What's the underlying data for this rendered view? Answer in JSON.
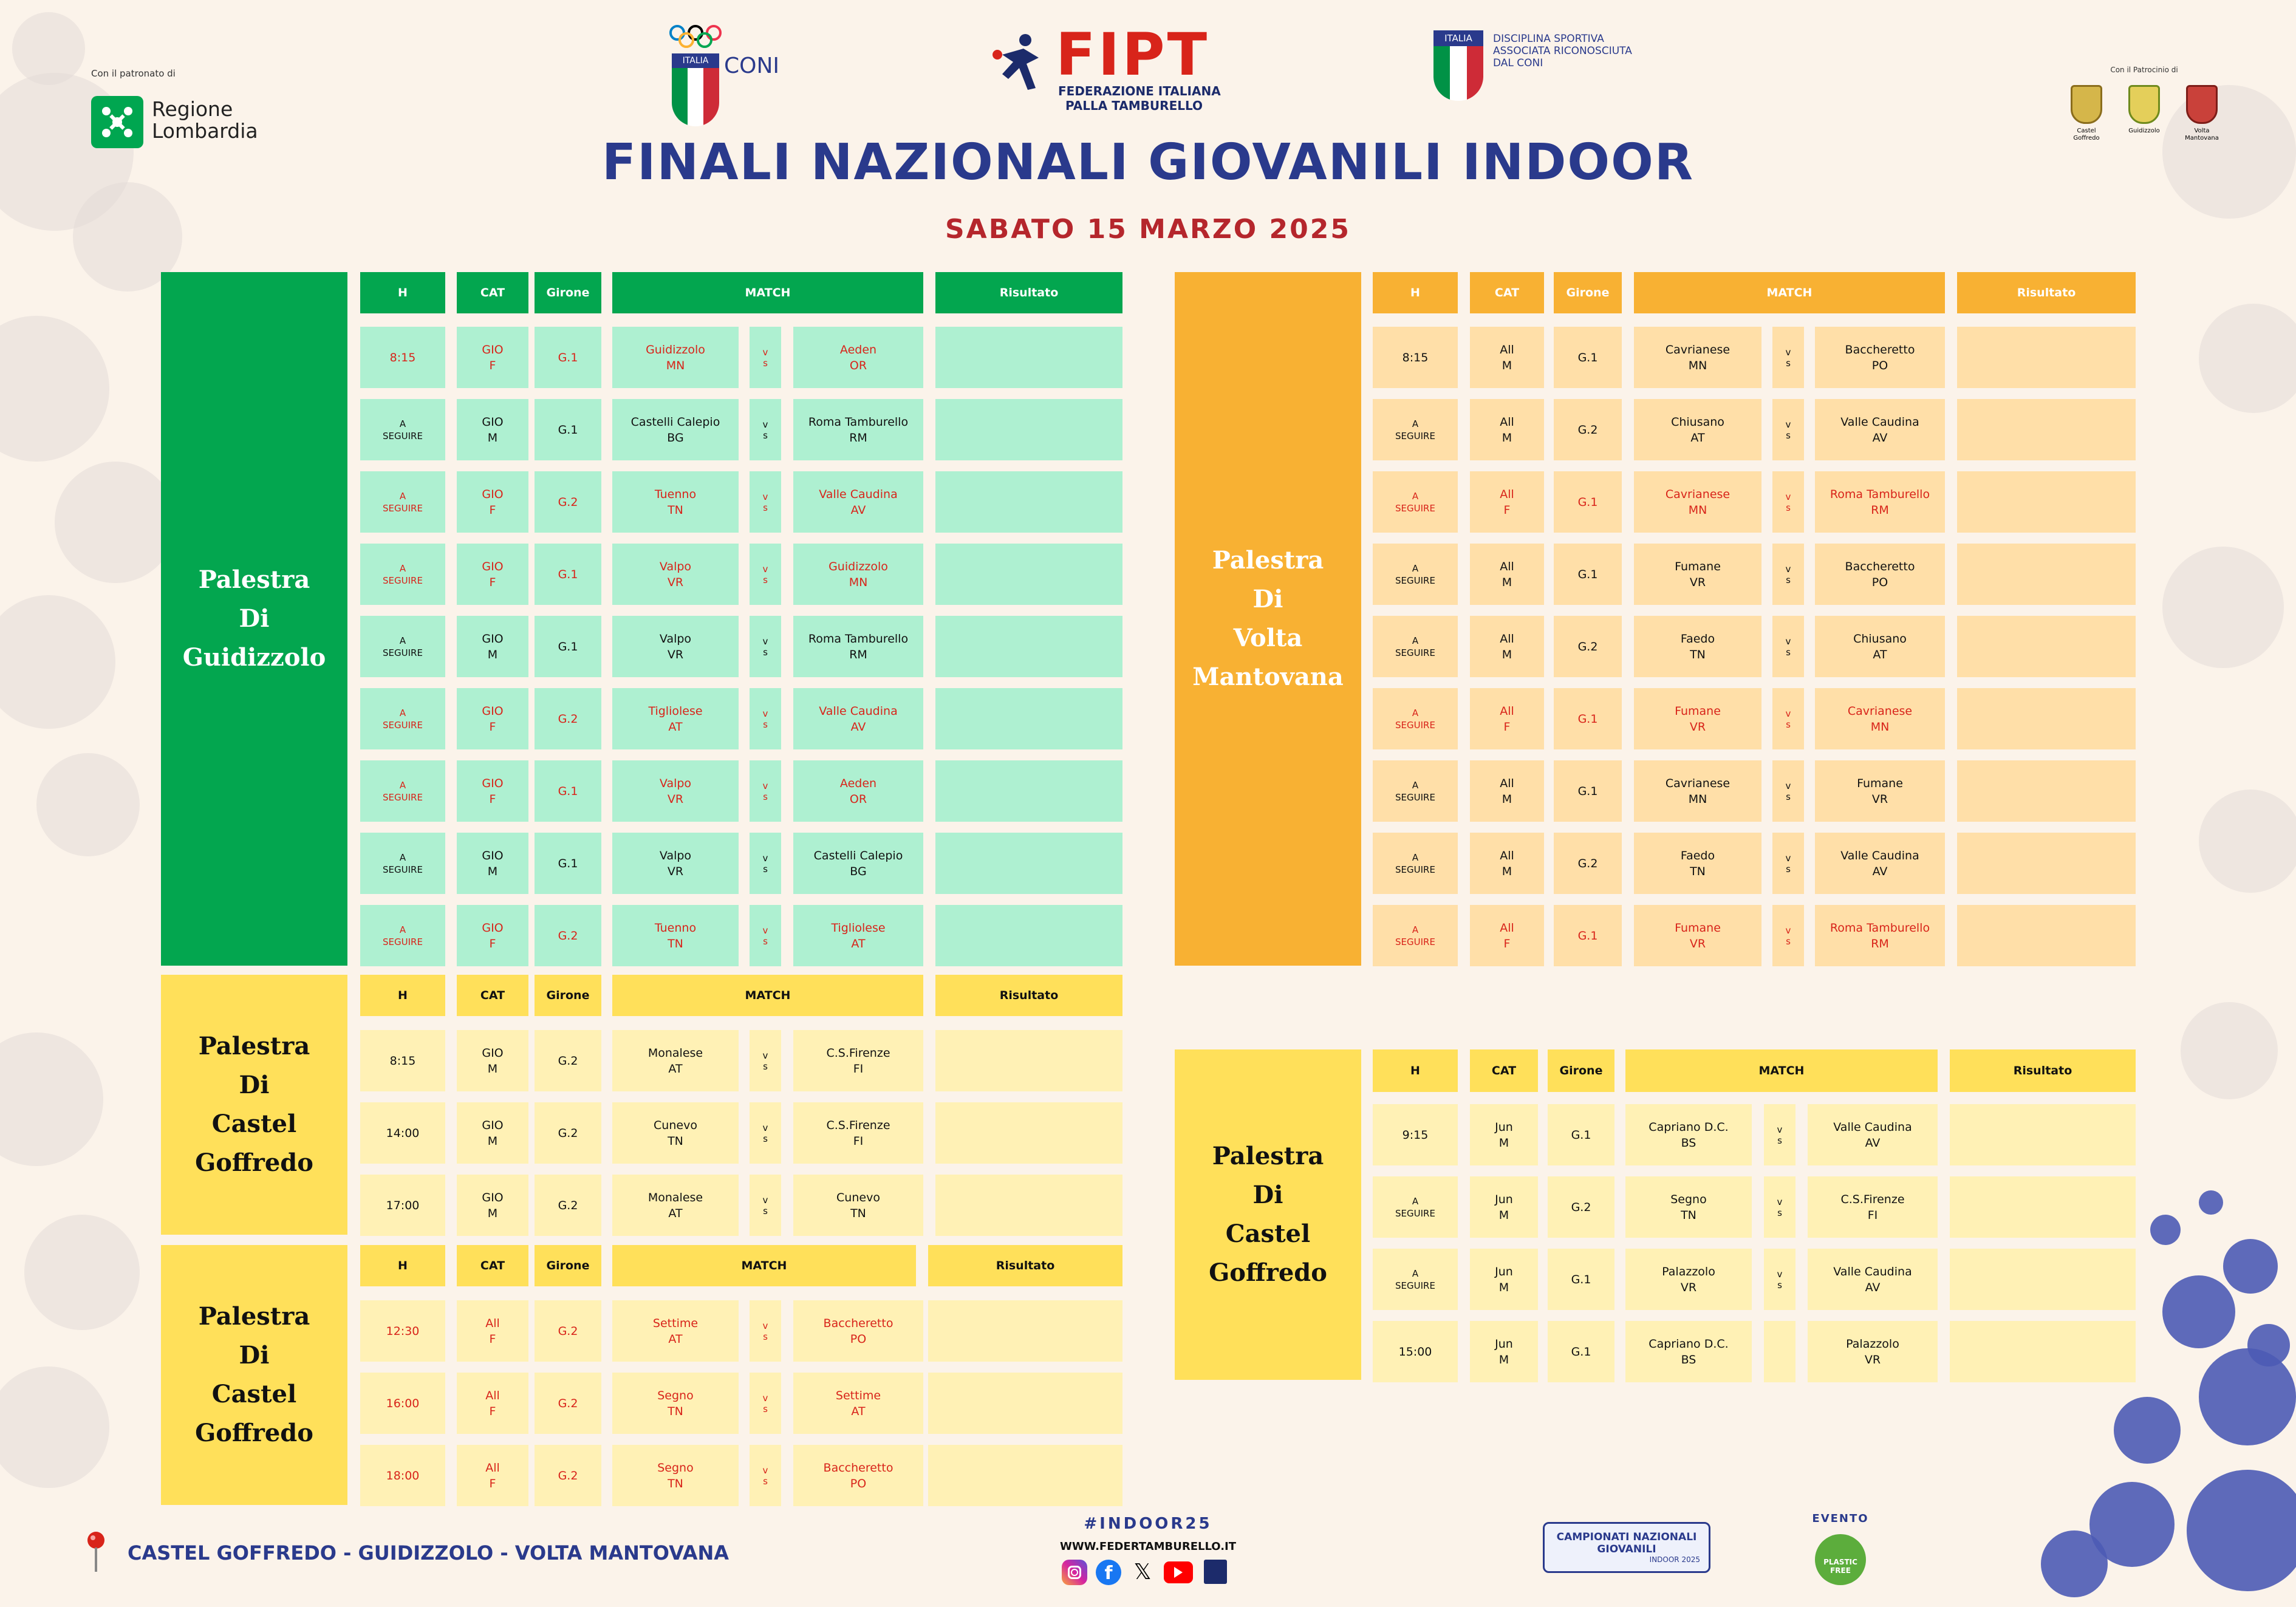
{
  "header": {
    "patronato_label": "Con il patronato di",
    "regione": "Regione\nLombardia",
    "coni": "CONI",
    "coni_italia": "ITALIA",
    "fipt_logo": "FIPT",
    "fipt_name": "FEDERAZIONE ITALIANA\nPALLA TAMBURELLO",
    "disciplina_italia": "ITALIA",
    "disciplina": "DISCIPLINA SPORTIVA\nASSOCIATA RICONOSCIUTA\nDAL CONI",
    "patrocinio_label": "Con il Patrocinio di",
    "comuni": [
      "Castel\nGoffredo",
      "Guidizzolo",
      "Volta\nMantovana"
    ],
    "title": "FINALI NAZIONALI GIOVANILI INDOOR",
    "subtitle": "SABATO 15 MARZO 2025"
  },
  "headers": {
    "h": "H",
    "cat": "CAT",
    "girone": "Girone",
    "match": "MATCH",
    "risultato": "Risultato"
  },
  "tables": [
    {
      "id": "guidizzolo",
      "venue": "Palestra\nDi\nGuidizzolo",
      "theme": "green",
      "colors": {
        "venue": "#03a64f",
        "hdr": "#03a64f",
        "cell": "#aef0d1"
      },
      "rows": [
        {
          "h": "8:15",
          "cat": "GIO\nF",
          "girone": "G.1",
          "a": "Guidizzolo\nMN",
          "b": "Aeden\nOR",
          "red": true
        },
        {
          "h": "A\nSEGUIRE",
          "cat": "GIO\nM",
          "girone": "G.1",
          "a": "Castelli Calepio\nBG",
          "b": "Roma Tamburello\nRM",
          "red": false
        },
        {
          "h": "A\nSEGUIRE",
          "cat": "GIO\nF",
          "girone": "G.2",
          "a": "Tuenno\nTN",
          "b": "Valle Caudina\nAV",
          "red": true
        },
        {
          "h": "A\nSEGUIRE",
          "cat": "GIO\nF",
          "girone": "G.1",
          "a": "Valpo\nVR",
          "b": "Guidizzolo\nMN",
          "red": true
        },
        {
          "h": "A\nSEGUIRE",
          "cat": "GIO\nM",
          "girone": "G.1",
          "a": "Valpo\nVR",
          "b": "Roma Tamburello\nRM",
          "red": false
        },
        {
          "h": "A\nSEGUIRE",
          "cat": "GIO\nF",
          "girone": "G.2",
          "a": "Tigliolese\nAT",
          "b": "Valle Caudina\nAV",
          "red": true
        },
        {
          "h": "A\nSEGUIRE",
          "cat": "GIO\nF",
          "girone": "G.1",
          "a": "Valpo\nVR",
          "b": "Aeden\nOR",
          "red": true
        },
        {
          "h": "A\nSEGUIRE",
          "cat": "GIO\nM",
          "girone": "G.1",
          "a": "Valpo\nVR",
          "b": "Castelli Calepio\nBG",
          "red": false
        },
        {
          "h": "A\nSEGUIRE",
          "cat": "GIO\nF",
          "girone": "G.2",
          "a": "Tuenno\nTN",
          "b": "Tigliolese\nAT",
          "red": true
        }
      ]
    },
    {
      "id": "castel1",
      "venue": "Palestra\nDi\nCastel\nGoffredo",
      "theme": "yellow",
      "colors": {
        "venue": "#ffe05a",
        "hdr": "#ffe05a",
        "cell": "#fff1b5"
      },
      "rows": [
        {
          "h": "8:15",
          "cat": "GIO\nM",
          "girone": "G.2",
          "a": "Monalese\nAT",
          "b": "C.S.Firenze\nFI",
          "red": false
        },
        {
          "h": "14:00",
          "cat": "GIO\nM",
          "girone": "G.2",
          "a": "Cunevo\nTN",
          "b": "C.S.Firenze\nFI",
          "red": false
        },
        {
          "h": "17:00",
          "cat": "GIO\nM",
          "girone": "G.2",
          "a": "Monalese\nAT",
          "b": "Cunevo\nTN",
          "red": false
        }
      ]
    },
    {
      "id": "castel2",
      "venue": "Palestra\nDi\nCastel\nGoffredo",
      "theme": "yellow",
      "colors": {
        "venue": "#ffe05a",
        "hdr": "#ffe05a",
        "cell": "#fff1b5"
      },
      "rows": [
        {
          "h": "12:30",
          "cat": "All\nF",
          "girone": "G.2",
          "a": "Settime\nAT",
          "b": "Baccheretto\nPO",
          "red": true
        },
        {
          "h": "16:00",
          "cat": "All\nF",
          "girone": "G.2",
          "a": "Segno\nTN",
          "b": "Settime\nAT",
          "red": true
        },
        {
          "h": "18:00",
          "cat": "All\nF",
          "girone": "G.2",
          "a": "Segno\nTN",
          "b": "Baccheretto\nPO",
          "red": true
        }
      ]
    },
    {
      "id": "volta",
      "venue": "Palestra\nDi\nVolta\nMantovana",
      "theme": "orange",
      "colors": {
        "venue": "#f8b133",
        "hdr": "#f8b133",
        "cell": "#ffdfa8"
      },
      "rows": [
        {
          "h": "8:15",
          "cat": "All\nM",
          "girone": "G.1",
          "a": "Cavrianese\nMN",
          "b": "Baccheretto\nPO",
          "red": false
        },
        {
          "h": "A\nSEGUIRE",
          "cat": "All\nM",
          "girone": "G.2",
          "a": "Chiusano\nAT",
          "b": "Valle Caudina\nAV",
          "red": false
        },
        {
          "h": "A\nSEGUIRE",
          "cat": "All\nF",
          "girone": "G.1",
          "a": "Cavrianese\nMN",
          "b": "Roma Tamburello\nRM",
          "red": true
        },
        {
          "h": "A\nSEGUIRE",
          "cat": "All\nM",
          "girone": "G.1",
          "a": "Fumane\nVR",
          "b": "Baccheretto\nPO",
          "red": false
        },
        {
          "h": "A\nSEGUIRE",
          "cat": "All\nM",
          "girone": "G.2",
          "a": "Faedo\nTN",
          "b": "Chiusano\nAT",
          "red": false
        },
        {
          "h": "A\nSEGUIRE",
          "cat": "All\nF",
          "girone": "G.1",
          "a": "Fumane\nVR",
          "b": "Cavrianese\nMN",
          "red": true
        },
        {
          "h": "A\nSEGUIRE",
          "cat": "All\nM",
          "girone": "G.1",
          "a": "Cavrianese\nMN",
          "b": "Fumane\nVR",
          "red": false
        },
        {
          "h": "A\nSEGUIRE",
          "cat": "All\nM",
          "girone": "G.2",
          "a": "Faedo\nTN",
          "b": "Valle Caudina\nAV",
          "red": false
        },
        {
          "h": "A\nSEGUIRE",
          "cat": "All\nF",
          "girone": "G.1",
          "a": "Fumane\nVR",
          "b": "Roma Tamburello\nRM",
          "red": true
        }
      ]
    },
    {
      "id": "castel3",
      "venue": "Palestra\nDi\nCastel\nGoffredo",
      "theme": "yellow",
      "colors": {
        "venue": "#ffe05a",
        "hdr": "#ffe05a",
        "cell": "#fff1b5"
      },
      "rows": [
        {
          "h": "9:15",
          "cat": "Jun\nM",
          "girone": "G.1",
          "a": "Capriano D.C.\nBS",
          "b": "Valle Caudina\nAV",
          "red": false
        },
        {
          "h": "A\nSEGUIRE",
          "cat": "Jun\nM",
          "girone": "G.2",
          "a": "Segno\nTN",
          "b": "C.S.Firenze\nFI",
          "red": false
        },
        {
          "h": "A\nSEGUIRE",
          "cat": "Jun\nM",
          "girone": "G.1",
          "a": "Palazzolo\nVR",
          "b": "Valle Caudina\nAV",
          "red": false
        },
        {
          "h": "15:00",
          "cat": "Jun\nM",
          "girone": "G.1",
          "a": "Capriano D.C.\nBS",
          "b": "Palazzolo\nVR",
          "red": false,
          "novs": true
        }
      ]
    }
  ],
  "vs": "v\ns",
  "footer": {
    "location": "CASTEL GOFFREDO - GUIDIZZOLO - VOLTA MANTOVANA",
    "hashtag": "#INDOOR25",
    "site": "WWW.FEDERTAMBURELLO.IT",
    "campionati": "CAMPIONATI NAZIONALI\nGIOVANILI",
    "campionati_sub": "INDOOR 2025",
    "evento": "EVENTO",
    "plastic": "PLASTIC\nFREE"
  }
}
